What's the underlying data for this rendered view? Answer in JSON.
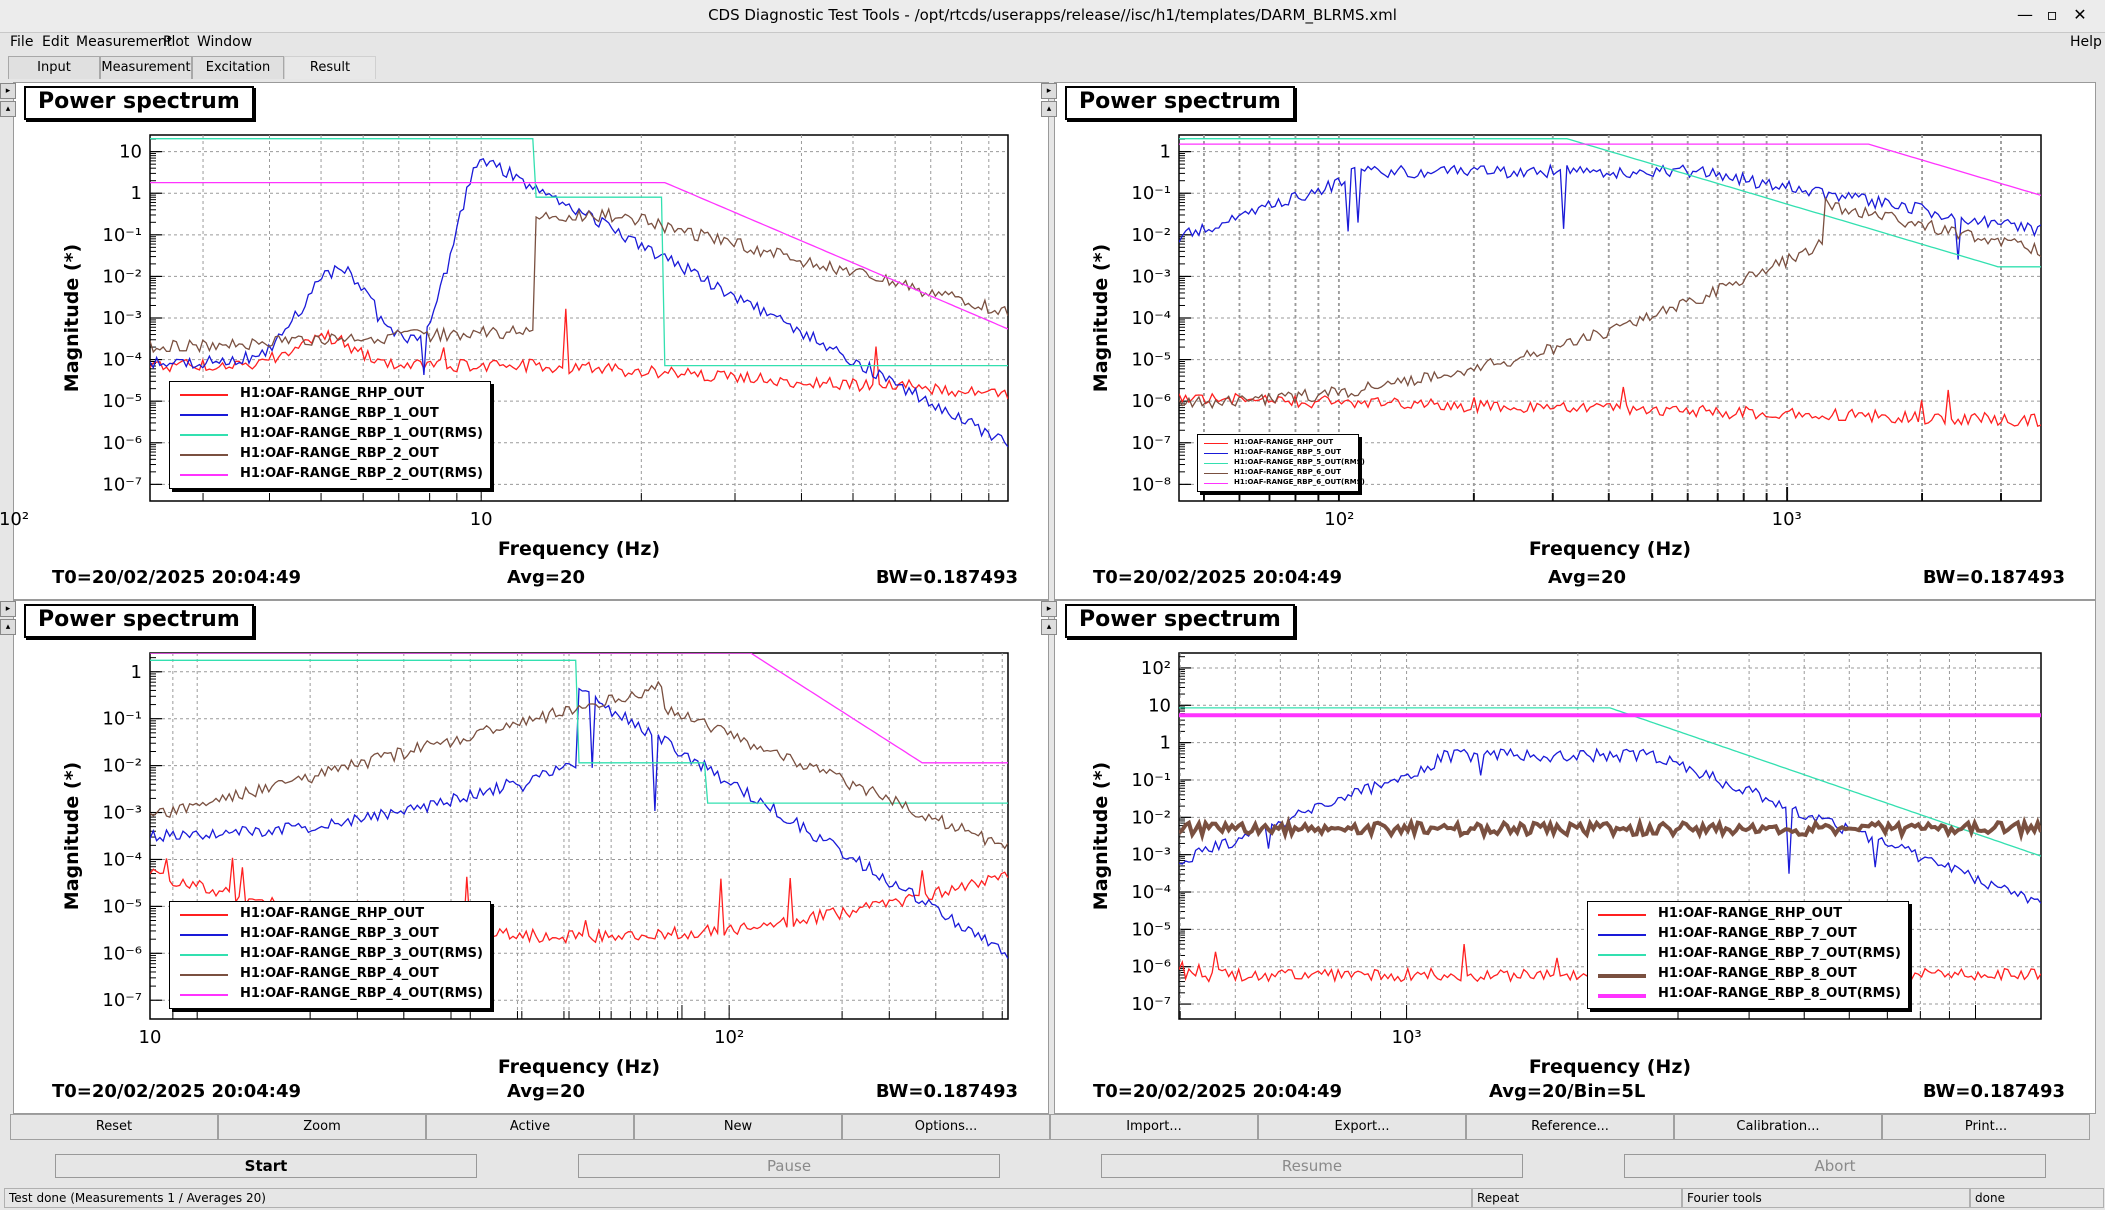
{
  "window": {
    "title": "CDS Diagnostic Test Tools - /opt/rtcds/userapps/release//isc/h1/templates/DARM_BLRMS.xml",
    "controls": [
      "—",
      "▫",
      "✕"
    ]
  },
  "menu": {
    "items": [
      "File",
      "Edit",
      "Measurement",
      "Plot",
      "Window"
    ],
    "help": "Help"
  },
  "tabs": [
    "Input",
    "Measurement",
    "Excitation",
    "Result"
  ],
  "active_tab": "Result",
  "panels": [
    {
      "title": "Power spectrum",
      "ylabel": "Magnitude (*)",
      "xlabel": "Frequency (Hz)",
      "t0": "T0=20/02/2025 20:04:49",
      "avg": "Avg=20",
      "bw": "BW=0.187493",
      "legend": [
        "H1:OAF-RANGE_RHP_OUT",
        "H1:OAF-RANGE_RBP_1_OUT",
        "H1:OAF-RANGE_RBP_1_OUT(RMS)",
        "H1:OAF-RANGE_RBP_2_OUT",
        "H1:OAF-RANGE_RBP_2_OUT(RMS)"
      ],
      "xtick_labels": [
        "10",
        "10²"
      ],
      "ytick_labels": [
        "10",
        "1",
        "10⁻¹",
        "10⁻²",
        "10⁻³",
        "10⁻⁴",
        "10⁻⁵",
        "10⁻⁶",
        "10⁻⁷"
      ]
    },
    {
      "title": "Power spectrum",
      "ylabel": "Magnitude (*)",
      "xlabel": "Frequency (Hz)",
      "t0": "T0=20/02/2025 20:04:49",
      "avg": "Avg=20",
      "bw": "BW=0.187493",
      "legend": [
        "H1:OAF-RANGE_RHP_OUT",
        "H1:OAF-RANGE_RBP_5_OUT",
        "H1:OAF-RANGE_RBP_5_OUT(RMS)",
        "H1:OAF-RANGE_RBP_6_OUT",
        "H1:OAF-RANGE_RBP_6_OUT(RMS)"
      ],
      "xtick_labels": [
        "10²",
        "10³"
      ],
      "ytick_labels": [
        "1",
        "10⁻¹",
        "10⁻²",
        "10⁻³",
        "10⁻⁴",
        "10⁻⁵",
        "10⁻⁶",
        "10⁻⁷",
        "10⁻⁸"
      ]
    },
    {
      "title": "Power spectrum",
      "ylabel": "Magnitude (*)",
      "xlabel": "Frequency (Hz)",
      "t0": "T0=20/02/2025 20:04:49",
      "avg": "Avg=20",
      "bw": "BW=0.187493",
      "legend": [
        "H1:OAF-RANGE_RHP_OUT",
        "H1:OAF-RANGE_RBP_3_OUT",
        "H1:OAF-RANGE_RBP_3_OUT(RMS)",
        "H1:OAF-RANGE_RBP_4_OUT",
        "H1:OAF-RANGE_RBP_4_OUT(RMS)"
      ],
      "xtick_labels": [
        "10",
        "10²"
      ],
      "ytick_labels": [
        "1",
        "10⁻¹",
        "10⁻²",
        "10⁻³",
        "10⁻⁴",
        "10⁻⁵",
        "10⁻⁶",
        "10⁻⁷"
      ]
    },
    {
      "title": "Power spectrum",
      "ylabel": "Magnitude (*)",
      "xlabel": "Frequency (Hz)",
      "t0": "T0=20/02/2025 20:04:49",
      "avg": "Avg=20/Bin=5L",
      "bw": "BW=0.187493",
      "legend": [
        "H1:OAF-RANGE_RHP_OUT",
        "H1:OAF-RANGE_RBP_7_OUT",
        "H1:OAF-RANGE_RBP_7_OUT(RMS)",
        "H1:OAF-RANGE_RBP_8_OUT",
        "H1:OAF-RANGE_RBP_8_OUT(RMS)"
      ],
      "xtick_labels": [
        "10³"
      ],
      "ytick_labels": [
        "10²",
        "10",
        "1",
        "10⁻¹",
        "10⁻²",
        "10⁻³",
        "10⁻⁴",
        "10⁻⁵",
        "10⁻⁶",
        "10⁻⁷"
      ]
    }
  ],
  "series_colors": [
    "#ff2020",
    "#1a1ad8",
    "#33e0b0",
    "#7a5040",
    "#ff33ff"
  ],
  "toolbar": [
    "Reset",
    "Zoom",
    "Active",
    "New",
    "Options...",
    "Import...",
    "Export...",
    "Reference...",
    "Calibration...",
    "Print..."
  ],
  "run_buttons": [
    "Start",
    "Pause",
    "Resume",
    "Abort"
  ],
  "status": {
    "message": "Test done (Measurements 1 / Averages 20)",
    "mode": "Repeat",
    "tool": "Fourier tools",
    "state": "done"
  }
}
